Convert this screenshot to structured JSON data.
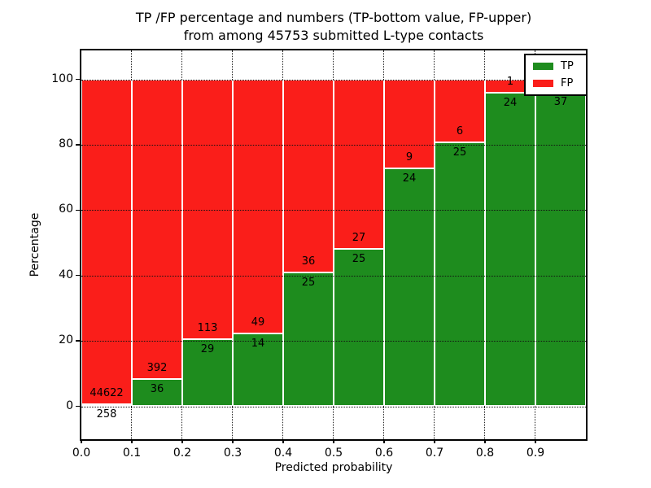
{
  "title": {
    "line1": "TP /FP percentage and numbers (TP-bottom value, FP-upper)",
    "line2": "from among 45753 submitted L-type contacts"
  },
  "colors": {
    "tp_green": "#1e8c1e",
    "fp_red": "#fa1e1a",
    "grid": "#111111",
    "frame": "#000000"
  },
  "chart_data": {
    "type": "bar",
    "stacked": true,
    "title": "TP /FP percentage and numbers (TP-bottom value, FP-upper) from among 45753 submitted L-type contacts",
    "xlabel": "Predicted probability",
    "ylabel": "Percentage",
    "total_submitted_contacts": 45753,
    "x_ticks": [
      "0.0",
      "0.1",
      "0.2",
      "0.3",
      "0.4",
      "0.5",
      "0.6",
      "0.7",
      "0.8",
      "0.9"
    ],
    "y_ticks": [
      "0",
      "20",
      "40",
      "60",
      "80",
      "100"
    ],
    "ylim": [
      -10.3,
      108.9
    ],
    "grid": true,
    "legend_position": "upper right",
    "legend": [
      {
        "label": "TP",
        "color": "#1e8c1e"
      },
      {
        "label": "FP",
        "color": "#fa1e1a"
      }
    ],
    "categories": [
      "0.0-0.1",
      "0.1-0.2",
      "0.2-0.3",
      "0.3-0.4",
      "0.4-0.5",
      "0.5-0.6",
      "0.6-0.7",
      "0.7-0.8",
      "0.8-0.9",
      "0.9-1.0"
    ],
    "series": [
      {
        "name": "TP",
        "values": [
          258,
          36,
          29,
          14,
          25,
          25,
          24,
          25,
          24,
          37
        ]
      },
      {
        "name": "FP",
        "values": [
          44622,
          392,
          113,
          49,
          36,
          27,
          9,
          6,
          1,
          null
        ]
      }
    ],
    "bins": [
      {
        "x_start": 0.0,
        "tp": 258,
        "fp": 44622,
        "tp_pct": 0.57,
        "tp_label": "258",
        "fp_label": "44622"
      },
      {
        "x_start": 0.1,
        "tp": 36,
        "fp": 392,
        "tp_pct": 8.41,
        "tp_label": "36",
        "fp_label": "392"
      },
      {
        "x_start": 0.2,
        "tp": 29,
        "fp": 113,
        "tp_pct": 20.42,
        "tp_label": "29",
        "fp_label": "113"
      },
      {
        "x_start": 0.3,
        "tp": 14,
        "fp": 49,
        "tp_pct": 22.22,
        "tp_label": "14",
        "fp_label": "49"
      },
      {
        "x_start": 0.4,
        "tp": 25,
        "fp": 36,
        "tp_pct": 40.98,
        "tp_label": "25",
        "fp_label": "36"
      },
      {
        "x_start": 0.5,
        "tp": 25,
        "fp": 27,
        "tp_pct": 48.08,
        "tp_label": "25",
        "fp_label": "27"
      },
      {
        "x_start": 0.6,
        "tp": 24,
        "fp": 9,
        "tp_pct": 72.73,
        "tp_label": "24",
        "fp_label": "9"
      },
      {
        "x_start": 0.7,
        "tp": 25,
        "fp": 6,
        "tp_pct": 80.65,
        "tp_label": "25",
        "fp_label": "6"
      },
      {
        "x_start": 0.8,
        "tp": 24,
        "fp": 1,
        "tp_pct": 96.0,
        "tp_label": "24",
        "fp_label": "1"
      },
      {
        "x_start": 0.9,
        "tp": 37,
        "fp": null,
        "tp_pct": 96.1,
        "tp_label": "37",
        "fp_label": "",
        "fp_label_hidden_by_legend": true
      }
    ]
  }
}
